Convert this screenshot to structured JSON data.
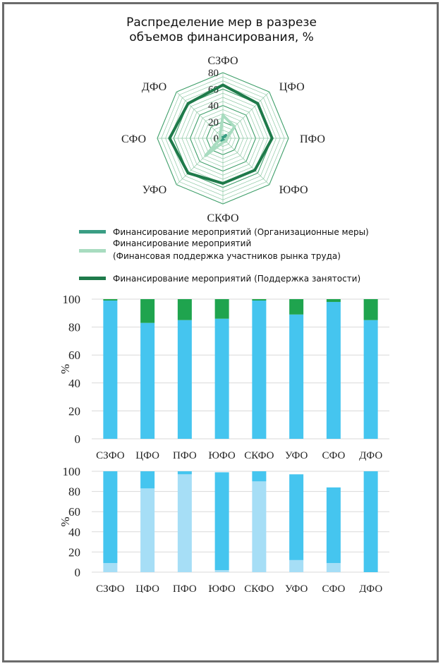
{
  "title": {
    "line1": "Распределение мер в разрезе",
    "line2": "объемов финансирования, %"
  },
  "chart_data": [
    {
      "type": "radar",
      "axes": [
        "СЗФО",
        "ЦФО",
        "ПФО",
        "ЮФО",
        "СКФО",
        "УФО",
        "СФО",
        "ДФО"
      ],
      "rlim": [
        0,
        80
      ],
      "rticks": [
        "0",
        "20",
        "40",
        "60",
        "80"
      ],
      "series": [
        {
          "name": "Финансирование мероприятий (Организационные меры)",
          "color": "#3a9e84",
          "values": [
            1,
            5,
            5,
            5,
            2,
            3,
            3,
            2
          ]
        },
        {
          "name": "Финансирование мероприятий",
          "name_line2": "(Финансовая поддержка участников рынка труда)",
          "color": "#a8dcc0",
          "values": [
            28,
            20,
            5,
            5,
            5,
            30,
            3,
            5
          ]
        },
        {
          "name": "Финансирование мероприятий (Поддержка занятости)",
          "color": "#1e7a4a",
          "values": [
            65,
            60,
            60,
            55,
            55,
            60,
            65,
            60
          ]
        }
      ]
    },
    {
      "type": "bar",
      "stacked": true,
      "categories": [
        "СЗФО",
        "ЦФО",
        "ПФО",
        "ЮФО",
        "СКФО",
        "УФО",
        "СФО",
        "ДФО"
      ],
      "ylabel": "%",
      "ylim": [
        0,
        100
      ],
      "yticks": [
        "0",
        "20",
        "40",
        "60",
        "80",
        "100"
      ],
      "series": [
        {
          "color": "#45c5ef",
          "values": [
            99,
            83,
            85,
            86,
            99,
            89,
            98,
            85
          ]
        },
        {
          "color": "#1fa44e",
          "values": [
            1,
            17,
            15,
            14,
            1,
            11,
            2,
            15
          ]
        }
      ]
    },
    {
      "type": "bar",
      "stacked": true,
      "categories": [
        "СЗФО",
        "ЦФО",
        "ПФО",
        "ЮФО",
        "СКФО",
        "УФО",
        "СФО",
        "ДФО"
      ],
      "ylabel": "%",
      "ylim": [
        0,
        100
      ],
      "yticks": [
        "0",
        "20",
        "40",
        "60",
        "80",
        "100"
      ],
      "series": [
        {
          "color": "#a6def6",
          "values": [
            9,
            83,
            97,
            2,
            90,
            12,
            9,
            0
          ]
        },
        {
          "color": "#45c5ef",
          "values": [
            91,
            17,
            3,
            97,
            10,
            85,
            75,
            100
          ]
        }
      ]
    }
  ]
}
